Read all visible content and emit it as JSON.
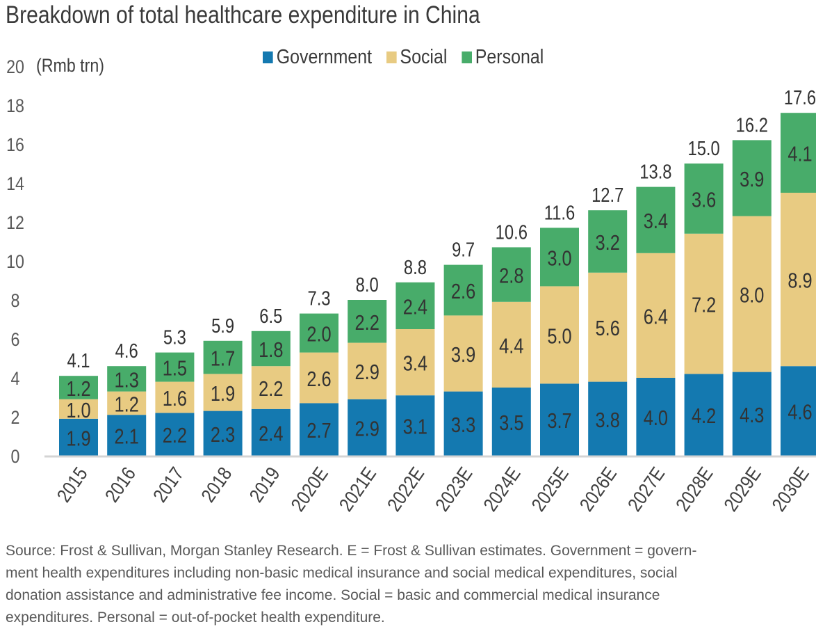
{
  "chart_data": {
    "type": "bar",
    "stacked": true,
    "title": "Breakdown of total healthcare expenditure in China",
    "ylabel": "(Rmb trn)",
    "xlabel": "",
    "ylim": [
      0,
      20
    ],
    "yticks": [
      0,
      2,
      4,
      6,
      8,
      10,
      12,
      14,
      16,
      18,
      20
    ],
    "grid": false,
    "legend_position": "top-center",
    "categories": [
      "2015",
      "2016",
      "2017",
      "2018",
      "2019",
      "2020E",
      "2021E",
      "2022E",
      "2023E",
      "2024E",
      "2025E",
      "2026E",
      "2027E",
      "2028E",
      "2029E",
      "2030E"
    ],
    "series": [
      {
        "name": "Government",
        "color": "#1479b0",
        "values": [
          1.9,
          2.1,
          2.2,
          2.3,
          2.4,
          2.7,
          2.9,
          3.1,
          3.3,
          3.5,
          3.7,
          3.8,
          4.0,
          4.2,
          4.3,
          4.6
        ]
      },
      {
        "name": "Social",
        "color": "#e8cb82",
        "values": [
          1.0,
          1.2,
          1.6,
          1.9,
          2.2,
          2.6,
          2.9,
          3.4,
          3.9,
          4.4,
          5.0,
          5.6,
          6.4,
          7.2,
          8.0,
          8.9
        ]
      },
      {
        "name": "Personal",
        "color": "#48ac6a",
        "values": [
          1.2,
          1.3,
          1.5,
          1.7,
          1.8,
          2.0,
          2.2,
          2.4,
          2.6,
          2.8,
          3.0,
          3.2,
          3.4,
          3.6,
          3.9,
          4.1
        ]
      }
    ],
    "totals": [
      "4.1",
      "4.6",
      "5.3",
      "5.9",
      "6.5",
      "7.3",
      "8.0",
      "8.8",
      "9.7",
      "10.6",
      "11.6",
      "12.7",
      "13.8",
      "15.0",
      "16.2",
      "17.6"
    ]
  },
  "source_lines": [
    "Source: Frost & Sullivan, Morgan Stanley Research. E = Frost & Sullivan estimates. Government = govern-",
    "ment health expenditures including non-basic medical insurance and social medical expenditures, social",
    "donation assistance and administrative fee income. Social = basic and commercial medical insurance",
    "expenditures. Personal = out-of-pocket health expenditure."
  ]
}
